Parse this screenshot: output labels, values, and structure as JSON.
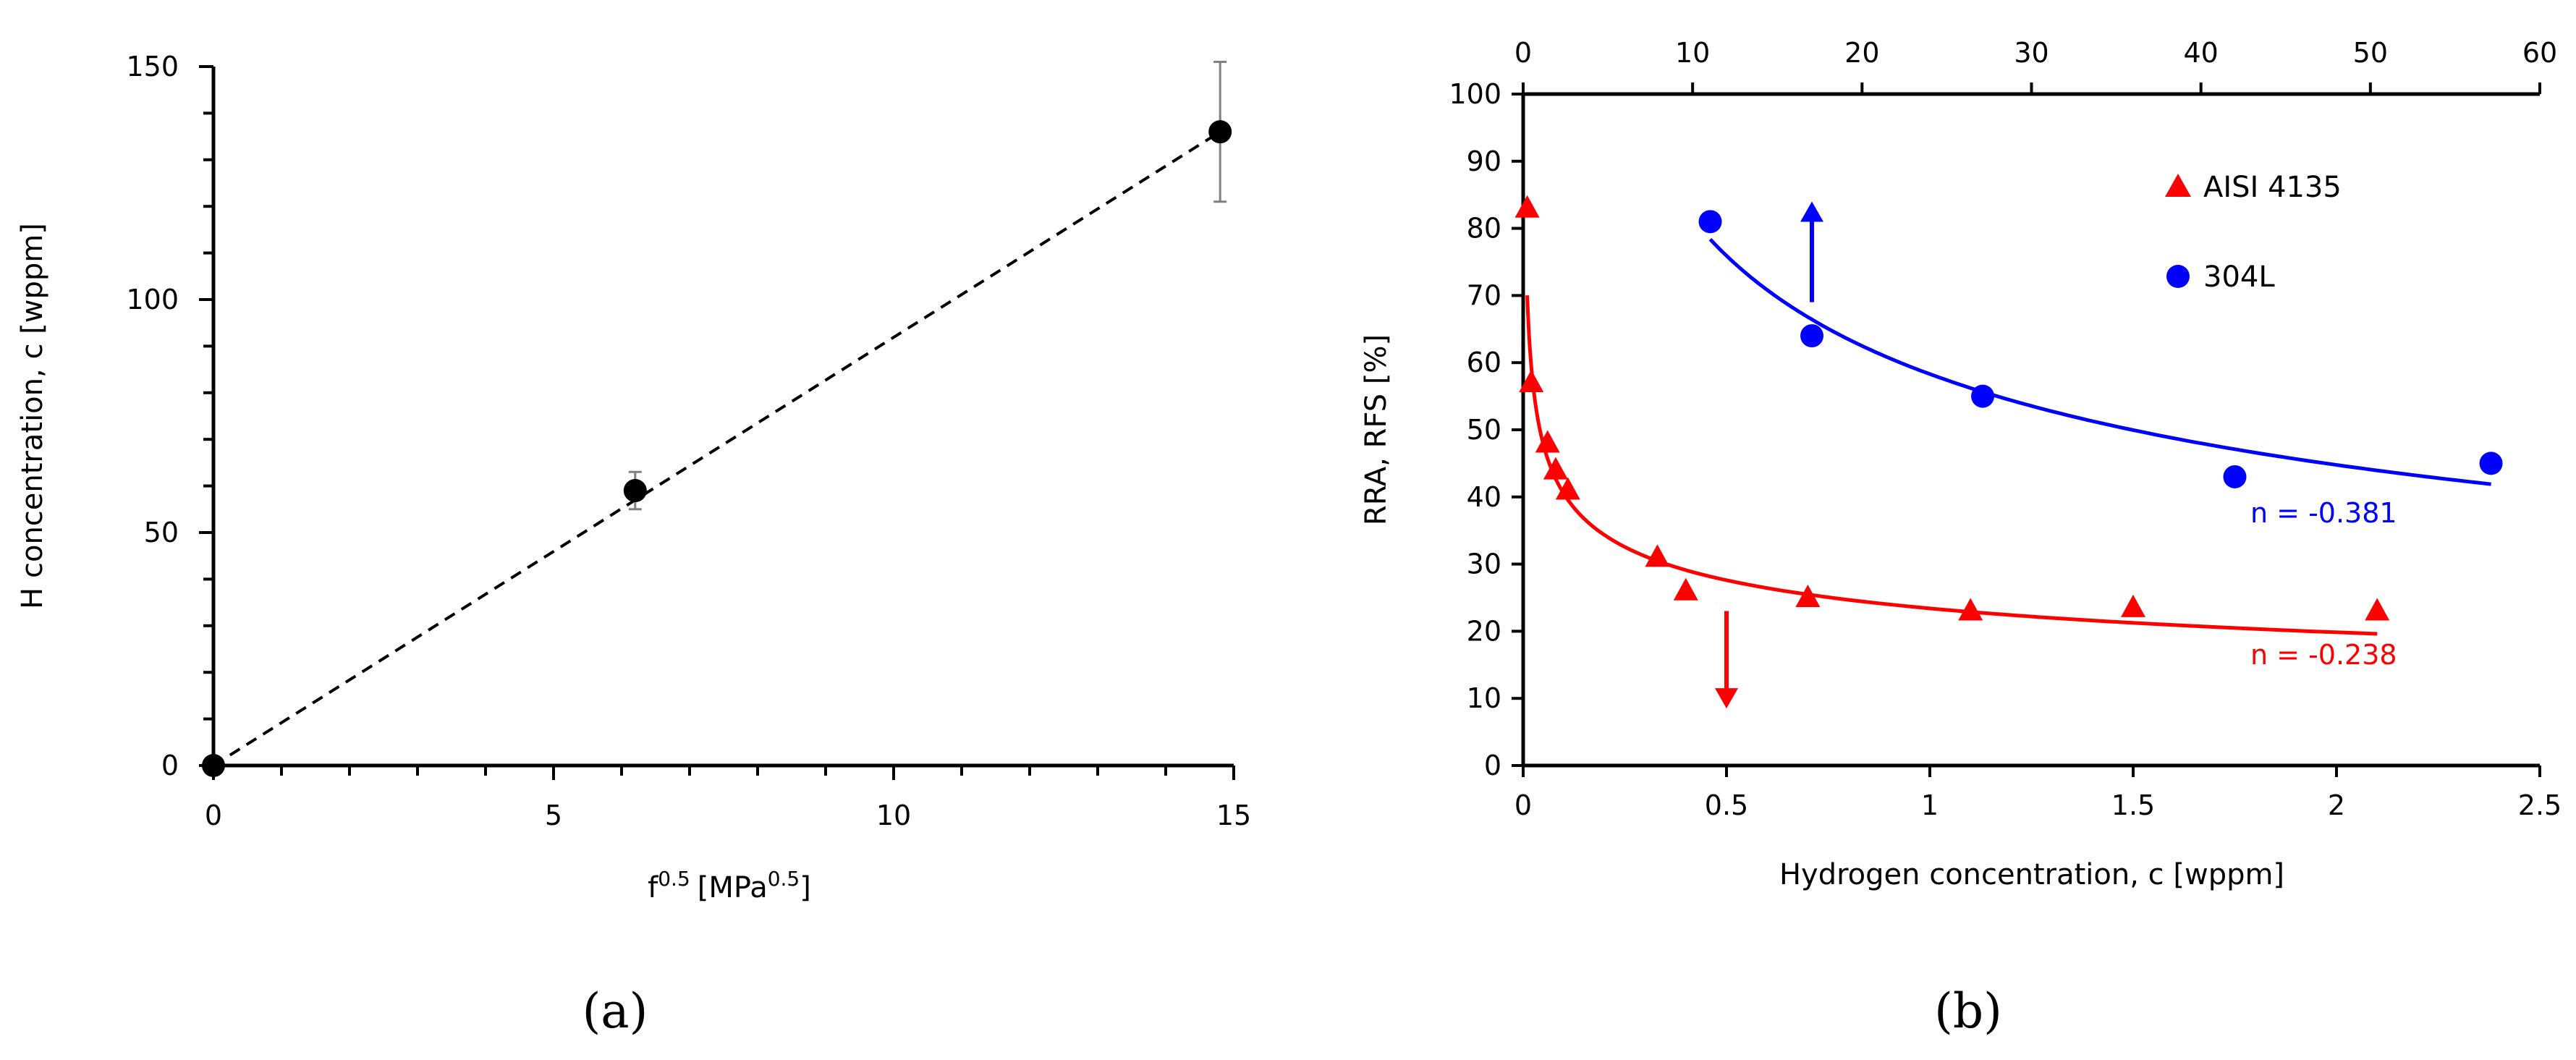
{
  "chart_data": [
    {
      "id": "a",
      "type": "scatter",
      "panel_label": "(a)",
      "xlabel_base": "f",
      "xlabel_base_sup": "0.5",
      "xlabel_unit": "[MPa",
      "xlabel_unit_sup": "0.5",
      "xlabel_close": "]",
      "ylabel": "H concentration, c [wppm]",
      "xlim": [
        0,
        15
      ],
      "ylim": [
        0,
        150
      ],
      "xticks": [
        0,
        5,
        10,
        15
      ],
      "yticks": [
        0,
        50,
        100,
        150
      ],
      "grid": false,
      "points": [
        {
          "x": 0,
          "y": 0,
          "err": 0
        },
        {
          "x": 6.2,
          "y": 59,
          "err": 4
        },
        {
          "x": 14.8,
          "y": 136,
          "err": 15
        }
      ],
      "trendline": {
        "style": "dashed",
        "x": [
          0,
          14.8
        ],
        "y": [
          0,
          136
        ]
      }
    },
    {
      "id": "b",
      "type": "scatter",
      "panel_label": "(b)",
      "xlabel": "Hydrogen concentration, c [wppm]",
      "ylabel": "RRA, RFS [%]",
      "xlim": [
        0,
        2.5
      ],
      "ylim": [
        0,
        100
      ],
      "xticks": [
        "0",
        "0.5",
        "1",
        "1.5",
        "2",
        "2.5"
      ],
      "yticks": [
        "0",
        "10",
        "20",
        "30",
        "40",
        "50",
        "60",
        "70",
        "80",
        "90",
        "100"
      ],
      "x2lim": [
        0,
        60
      ],
      "x2ticks": [
        "0",
        "10",
        "20",
        "30",
        "40",
        "50",
        "60"
      ],
      "grid": false,
      "legend_position": "top-right",
      "series": [
        {
          "name": "AISI 4135",
          "color": "#ff0000",
          "marker": "triangle",
          "x": [
            0.01,
            0.02,
            0.06,
            0.08,
            0.11,
            0.33,
            0.4,
            0.7,
            1.1,
            1.5,
            2.1
          ],
          "y": [
            83,
            57,
            48,
            44,
            41,
            31,
            26,
            25,
            23,
            23.5,
            23
          ],
          "fit": {
            "model": "power",
            "a": 23.4,
            "n": -0.238,
            "x_from": 0.01,
            "x_to": 2.1
          },
          "annotation": "n = -0.238",
          "arrow": "down"
        },
        {
          "name": "304L",
          "color": "#0000ff",
          "marker": "circle",
          "x": [
            0.46,
            0.71,
            1.13,
            1.75,
            2.38
          ],
          "y": [
            81,
            64,
            55,
            43,
            45
          ],
          "fit": {
            "model": "power",
            "a": 58.3,
            "n": -0.381,
            "x_from": 0.46,
            "x_to": 2.38
          },
          "annotation": "n = -0.381",
          "arrow": "up"
        }
      ]
    }
  ]
}
